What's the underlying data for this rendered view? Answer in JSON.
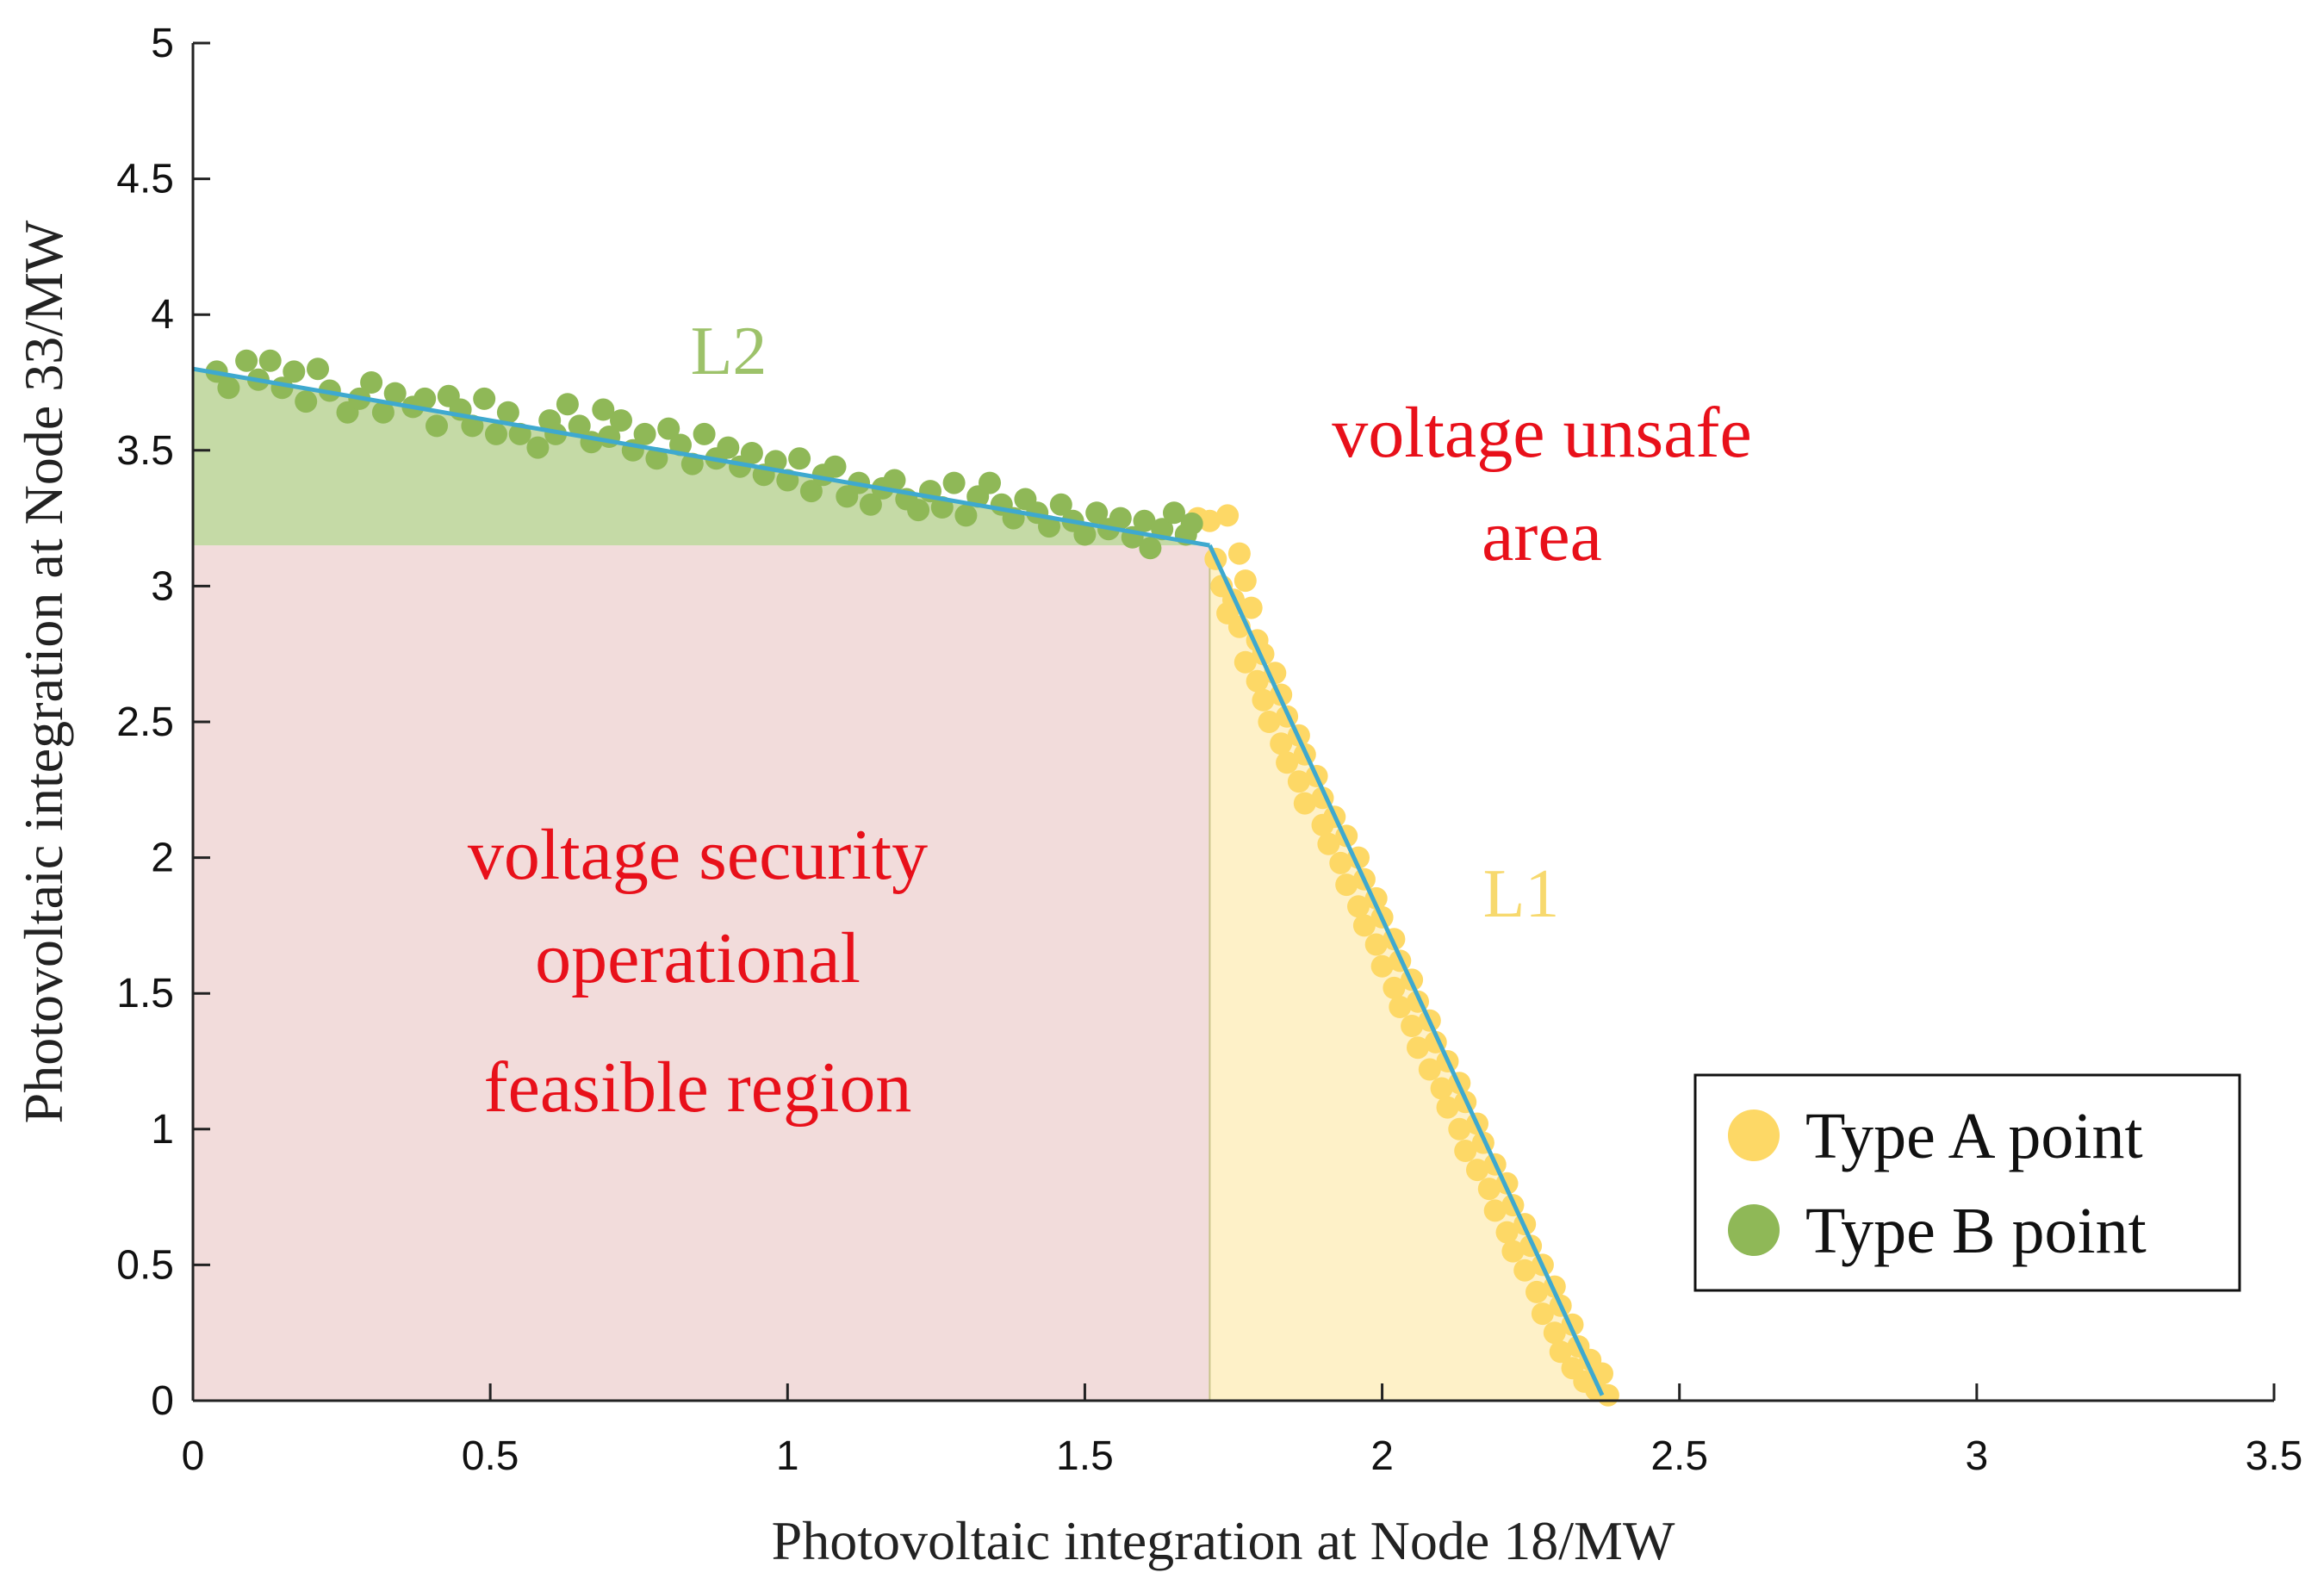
{
  "chart_data": {
    "type": "scatter",
    "xlabel": "Photovoltaic integration at Node 18/MW",
    "ylabel": "Photovoltaic integration at Node 33/MW",
    "xlim": [
      0,
      3.5
    ],
    "ylim": [
      0,
      5
    ],
    "x_ticks": [
      "0",
      "0.5",
      "1",
      "1.5",
      "2",
      "2.5",
      "3",
      "3.5"
    ],
    "y_ticks": [
      "0",
      "0.5",
      "1",
      "1.5",
      "2",
      "2.5",
      "3",
      "3.5",
      "4",
      "4.5",
      "5"
    ],
    "grid": false,
    "legend_position": "bottom-right",
    "colors": {
      "type_a": "#fdd866",
      "type_b": "#8fb857",
      "boundary_line": "#3ea9cf",
      "feasible_region": "#f2dcdb",
      "type_a_region": "#fef1c8",
      "type_b_region": "#c5daa6",
      "region_text": "#e8101a",
      "l1_text": "#f7d96e",
      "l2_text": "#9dc26a"
    },
    "region_labels": {
      "feasible": [
        "voltage security",
        "operational",
        "feasible region"
      ],
      "unsafe": [
        "voltage unsafe",
        "area"
      ]
    },
    "line_labels": {
      "l1": "L1",
      "l2": "L2"
    },
    "legend": [
      {
        "name": "Type A point",
        "color": "#fdd866"
      },
      {
        "name": "Type B point",
        "color": "#8fb857"
      }
    ],
    "boundary": {
      "l2": [
        [
          0,
          3.8
        ],
        [
          1.71,
          3.15
        ]
      ],
      "l1": [
        [
          1.71,
          3.15
        ],
        [
          2.37,
          0.02
        ]
      ]
    },
    "regions": {
      "feasible": [
        [
          0,
          0
        ],
        [
          1.71,
          0
        ],
        [
          1.71,
          3.15
        ],
        [
          0,
          3.15
        ]
      ],
      "type_b": [
        [
          0,
          3.15
        ],
        [
          1.71,
          3.15
        ],
        [
          0,
          3.8
        ]
      ],
      "type_a": [
        [
          1.71,
          0
        ],
        [
          2.37,
          0
        ],
        [
          1.71,
          3.15
        ]
      ]
    },
    "series": [
      {
        "name": "Type A point",
        "points": [
          [
            1.69,
            3.25
          ],
          [
            1.71,
            3.24
          ],
          [
            1.74,
            3.26
          ],
          [
            1.72,
            3.1
          ],
          [
            1.76,
            3.12
          ],
          [
            1.73,
            3.0
          ],
          [
            1.75,
            2.95
          ],
          [
            1.77,
            3.02
          ],
          [
            1.74,
            2.9
          ],
          [
            1.78,
            2.92
          ],
          [
            1.76,
            2.85
          ],
          [
            1.79,
            2.8
          ],
          [
            1.77,
            2.72
          ],
          [
            1.8,
            2.75
          ],
          [
            1.79,
            2.65
          ],
          [
            1.82,
            2.68
          ],
          [
            1.8,
            2.58
          ],
          [
            1.83,
            2.6
          ],
          [
            1.81,
            2.5
          ],
          [
            1.84,
            2.52
          ],
          [
            1.83,
            2.42
          ],
          [
            1.86,
            2.45
          ],
          [
            1.84,
            2.35
          ],
          [
            1.87,
            2.38
          ],
          [
            1.86,
            2.28
          ],
          [
            1.89,
            2.3
          ],
          [
            1.87,
            2.2
          ],
          [
            1.9,
            2.22
          ],
          [
            1.9,
            2.12
          ],
          [
            1.92,
            2.15
          ],
          [
            1.91,
            2.05
          ],
          [
            1.94,
            2.08
          ],
          [
            1.93,
            1.98
          ],
          [
            1.96,
            2.0
          ],
          [
            1.94,
            1.9
          ],
          [
            1.97,
            1.92
          ],
          [
            1.96,
            1.82
          ],
          [
            1.99,
            1.85
          ],
          [
            1.97,
            1.75
          ],
          [
            2.0,
            1.78
          ],
          [
            1.99,
            1.68
          ],
          [
            2.02,
            1.7
          ],
          [
            2.0,
            1.6
          ],
          [
            2.03,
            1.62
          ],
          [
            2.02,
            1.52
          ],
          [
            2.05,
            1.55
          ],
          [
            2.03,
            1.45
          ],
          [
            2.06,
            1.47
          ],
          [
            2.05,
            1.38
          ],
          [
            2.08,
            1.4
          ],
          [
            2.06,
            1.3
          ],
          [
            2.09,
            1.32
          ],
          [
            2.08,
            1.22
          ],
          [
            2.11,
            1.25
          ],
          [
            2.1,
            1.15
          ],
          [
            2.13,
            1.17
          ],
          [
            2.11,
            1.08
          ],
          [
            2.14,
            1.1
          ],
          [
            2.13,
            1.0
          ],
          [
            2.16,
            1.02
          ],
          [
            2.14,
            0.92
          ],
          [
            2.17,
            0.95
          ],
          [
            2.16,
            0.85
          ],
          [
            2.19,
            0.87
          ],
          [
            2.18,
            0.78
          ],
          [
            2.21,
            0.8
          ],
          [
            2.19,
            0.7
          ],
          [
            2.22,
            0.72
          ],
          [
            2.21,
            0.62
          ],
          [
            2.24,
            0.65
          ],
          [
            2.22,
            0.55
          ],
          [
            2.25,
            0.57
          ],
          [
            2.24,
            0.48
          ],
          [
            2.27,
            0.5
          ],
          [
            2.26,
            0.4
          ],
          [
            2.29,
            0.42
          ],
          [
            2.27,
            0.32
          ],
          [
            2.3,
            0.35
          ],
          [
            2.29,
            0.25
          ],
          [
            2.32,
            0.28
          ],
          [
            2.3,
            0.18
          ],
          [
            2.33,
            0.2
          ],
          [
            2.32,
            0.12
          ],
          [
            2.35,
            0.15
          ],
          [
            2.34,
            0.07
          ],
          [
            2.37,
            0.1
          ],
          [
            2.36,
            0.04
          ],
          [
            2.38,
            0.02
          ]
        ]
      },
      {
        "name": "Type B point",
        "points": [
          [
            0.04,
            3.79
          ],
          [
            0.06,
            3.73
          ],
          [
            0.09,
            3.83
          ],
          [
            0.11,
            3.76
          ],
          [
            0.13,
            3.83
          ],
          [
            0.15,
            3.73
          ],
          [
            0.17,
            3.79
          ],
          [
            0.19,
            3.68
          ],
          [
            0.21,
            3.8
          ],
          [
            0.23,
            3.72
          ],
          [
            0.26,
            3.64
          ],
          [
            0.28,
            3.69
          ],
          [
            0.3,
            3.75
          ],
          [
            0.32,
            3.64
          ],
          [
            0.34,
            3.71
          ],
          [
            0.37,
            3.66
          ],
          [
            0.39,
            3.69
          ],
          [
            0.41,
            3.59
          ],
          [
            0.43,
            3.7
          ],
          [
            0.45,
            3.65
          ],
          [
            0.47,
            3.59
          ],
          [
            0.49,
            3.69
          ],
          [
            0.51,
            3.56
          ],
          [
            0.53,
            3.64
          ],
          [
            0.55,
            3.56
          ],
          [
            0.58,
            3.51
          ],
          [
            0.6,
            3.61
          ],
          [
            0.61,
            3.56
          ],
          [
            0.63,
            3.67
          ],
          [
            0.65,
            3.59
          ],
          [
            0.67,
            3.53
          ],
          [
            0.69,
            3.65
          ],
          [
            0.7,
            3.55
          ],
          [
            0.72,
            3.61
          ],
          [
            0.74,
            3.5
          ],
          [
            0.76,
            3.56
          ],
          [
            0.78,
            3.47
          ],
          [
            0.8,
            3.58
          ],
          [
            0.82,
            3.52
          ],
          [
            0.84,
            3.45
          ],
          [
            0.86,
            3.56
          ],
          [
            0.88,
            3.47
          ],
          [
            0.9,
            3.51
          ],
          [
            0.92,
            3.44
          ],
          [
            0.94,
            3.49
          ],
          [
            0.96,
            3.41
          ],
          [
            0.98,
            3.46
          ],
          [
            1.0,
            3.39
          ],
          [
            1.02,
            3.47
          ],
          [
            1.04,
            3.35
          ],
          [
            1.06,
            3.41
          ],
          [
            1.08,
            3.44
          ],
          [
            1.1,
            3.33
          ],
          [
            1.12,
            3.38
          ],
          [
            1.14,
            3.3
          ],
          [
            1.16,
            3.36
          ],
          [
            1.18,
            3.39
          ],
          [
            1.2,
            3.32
          ],
          [
            1.22,
            3.28
          ],
          [
            1.24,
            3.35
          ],
          [
            1.26,
            3.29
          ],
          [
            1.28,
            3.38
          ],
          [
            1.3,
            3.26
          ],
          [
            1.32,
            3.33
          ],
          [
            1.34,
            3.38
          ],
          [
            1.36,
            3.3
          ],
          [
            1.38,
            3.25
          ],
          [
            1.4,
            3.32
          ],
          [
            1.42,
            3.27
          ],
          [
            1.44,
            3.22
          ],
          [
            1.46,
            3.3
          ],
          [
            1.48,
            3.24
          ],
          [
            1.5,
            3.19
          ],
          [
            1.52,
            3.27
          ],
          [
            1.54,
            3.21
          ],
          [
            1.56,
            3.25
          ],
          [
            1.58,
            3.18
          ],
          [
            1.6,
            3.24
          ],
          [
            1.61,
            3.14
          ],
          [
            1.63,
            3.21
          ],
          [
            1.65,
            3.27
          ],
          [
            1.67,
            3.19
          ],
          [
            1.68,
            3.23
          ]
        ]
      }
    ]
  }
}
